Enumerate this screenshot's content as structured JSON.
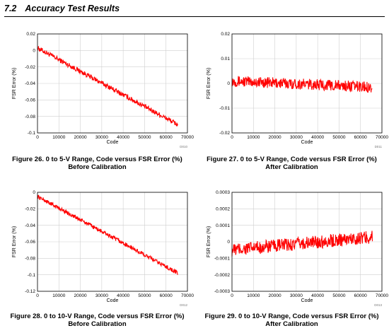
{
  "section": {
    "number": "7.2",
    "title": "Accuracy Test Results"
  },
  "colors": {
    "series": "#ff0000",
    "grid": "#cfcfcf",
    "text": "#000000"
  },
  "figures": [
    {
      "caption_line1": "Figure 26. 0 to 5-V Range, Code versus FSR Error (%)",
      "caption_line2": "Before Calibration",
      "chart_data": {
        "type": "line",
        "xlabel": "Code",
        "ylabel": "FSR Error (%)",
        "xlim": [
          0,
          70000
        ],
        "ylim": [
          -0.1,
          0.02
        ],
        "xticks": [
          "0",
          "10000",
          "20000",
          "30000",
          "40000",
          "50000",
          "60000",
          "70000"
        ],
        "yticks": [
          "0.02",
          "0",
          "-0.02",
          "-0.04",
          "-0.06",
          "-0.08",
          "-0.1"
        ],
        "grid": true,
        "tag": "D010",
        "series": [
          {
            "x": [
              0,
              65535
            ],
            "y": [
              0.003,
              -0.09
            ],
            "noise": 0.003
          }
        ]
      }
    },
    {
      "caption_line1": "Figure 27. 0 to 5-V Range, Code versus FSR Error (%)",
      "caption_line2": "After Calibration",
      "chart_data": {
        "type": "line",
        "xlabel": "Code",
        "ylabel": "FSR Error (%)",
        "xlim": [
          0,
          70000
        ],
        "ylim": [
          -0.02,
          0.02
        ],
        "xticks": [
          "0",
          "10000",
          "20000",
          "30000",
          "40000",
          "50000",
          "60000",
          "70000"
        ],
        "yticks": [
          "0.02",
          "0.01",
          "0",
          "-0.01",
          "-0.02"
        ],
        "grid": true,
        "tag": "D011",
        "series": [
          {
            "x": [
              0,
              65535
            ],
            "y": [
              0.001,
              -0.0015
            ],
            "noise": 0.0022
          }
        ]
      }
    },
    {
      "caption_line1": "Figure 28. 0 to 10-V Range, Code versus FSR Error (%)",
      "caption_line2": "Before Calibration",
      "chart_data": {
        "type": "line",
        "xlabel": "Code",
        "ylabel": "FSR Error (%)",
        "xlim": [
          0,
          70000
        ],
        "ylim": [
          -0.12,
          0
        ],
        "xticks": [
          "0",
          "10000",
          "20000",
          "30000",
          "40000",
          "50000",
          "60000",
          "70000"
        ],
        "yticks": [
          "0",
          "-0.02",
          "-0.04",
          "-0.06",
          "-0.08",
          "-0.1",
          "-0.12"
        ],
        "grid": true,
        "tag": "D012",
        "series": [
          {
            "x": [
              0,
              65535
            ],
            "y": [
              -0.005,
              -0.098
            ],
            "noise": 0.0025
          }
        ]
      }
    },
    {
      "caption_line1": "Figure 29. 0 to 10-V Range, Code versus FSR Error (%)",
      "caption_line2": "After Calibration",
      "chart_data": {
        "type": "line",
        "xlabel": "Code",
        "ylabel": "FSR Error (%)",
        "xlim": [
          0,
          70000
        ],
        "ylim": [
          -0.0003,
          0.0003
        ],
        "xticks": [
          "0",
          "10000",
          "20000",
          "30000",
          "40000",
          "50000",
          "60000",
          "70000"
        ],
        "yticks": [
          "0.0003",
          "0.0002",
          "0.0001",
          "0",
          "-0.0001",
          "-0.0002",
          "-0.0003"
        ],
        "grid": true,
        "tag": "D013",
        "series": [
          {
            "x": [
              0,
              65535
            ],
            "y": [
              -5e-05,
              3e-05
            ],
            "noise": 4e-05
          }
        ]
      }
    }
  ]
}
